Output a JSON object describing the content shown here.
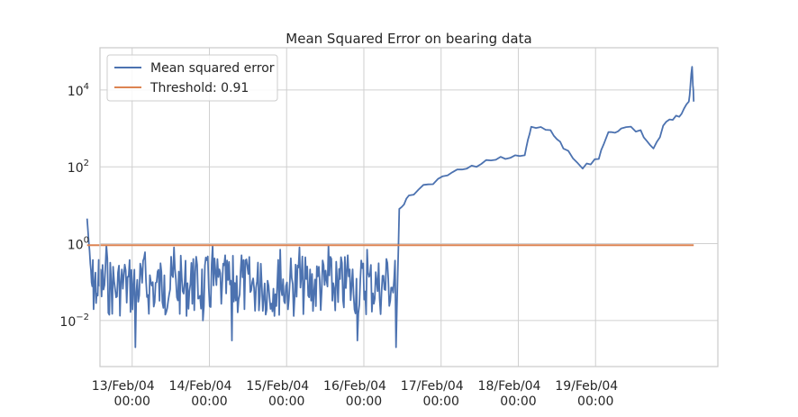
{
  "chart_data": {
    "type": "line",
    "title": "Mean Squared Error on bearing data",
    "xlabel": "",
    "ylabel": "",
    "y_scale": "log",
    "ylim_exponents": [
      -3.2,
      5.1
    ],
    "y_ticks": [
      {
        "exp": -2,
        "base": "10",
        "sup": "−2"
      },
      {
        "exp": 0,
        "base": "10",
        "sup": "0"
      },
      {
        "exp": 2,
        "base": "10",
        "sup": "2"
      },
      {
        "exp": 4,
        "base": "10",
        "sup": "4"
      }
    ],
    "xlim": [
      "2004-02-12T14:00",
      "2004-02-20T14:00"
    ],
    "x_ticks": [
      {
        "date": "2004-02-13T00:00",
        "line1": "13/Feb/04",
        "line2": "00:00"
      },
      {
        "date": "2004-02-14T00:00",
        "line1": "14/Feb/04",
        "line2": "00:00"
      },
      {
        "date": "2004-02-15T00:00",
        "line1": "15/Feb/04",
        "line2": "00:00"
      },
      {
        "date": "2004-02-16T00:00",
        "line1": "16/Feb/04",
        "line2": "00:00"
      },
      {
        "date": "2004-02-17T00:00",
        "line1": "17/Feb/04",
        "line2": "00:00"
      },
      {
        "date": "2004-02-18T00:00",
        "line1": "18/Feb/04",
        "line2": "00:00"
      },
      {
        "date": "2004-02-19T00:00",
        "line1": "19/Feb/04",
        "line2": "00:00"
      }
    ],
    "grid": true,
    "legend_position": "top-left",
    "colors": {
      "mse": "#4c72b0",
      "threshold": "#dd8452",
      "grid": "#d0d0d0",
      "axes": "#cccccc"
    },
    "series": [
      {
        "name": "Mean squared error",
        "note": "noisy below threshold until 16/Feb ~10:00, then rising trend",
        "x": [
          "2004-02-12T10:00",
          "2004-02-12T11:00",
          "2004-02-12T13:00",
          "2004-02-12T16:00",
          "2004-02-12T19:00",
          "2004-02-12T22:00",
          "2004-02-13T01:00",
          "2004-02-13T04:00",
          "2004-02-13T07:00",
          "2004-02-13T10:00",
          "2004-02-13T13:00",
          "2004-02-13T16:00",
          "2004-02-13T19:00",
          "2004-02-13T22:00",
          "2004-02-14T01:00",
          "2004-02-14T04:00",
          "2004-02-14T07:00",
          "2004-02-14T10:00",
          "2004-02-14T13:00",
          "2004-02-14T16:00",
          "2004-02-14T19:00",
          "2004-02-14T22:00",
          "2004-02-15T01:00",
          "2004-02-15T04:00",
          "2004-02-15T07:00",
          "2004-02-15T10:00",
          "2004-02-15T13:00",
          "2004-02-15T16:00",
          "2004-02-15T19:00",
          "2004-02-15T22:00",
          "2004-02-16T01:00",
          "2004-02-16T04:00",
          "2004-02-16T07:00",
          "2004-02-16T10:00",
          "2004-02-16T11:00",
          "2004-02-16T14:00",
          "2004-02-16T20:00",
          "2004-02-17T02:00",
          "2004-02-17T08:00",
          "2004-02-17T14:00",
          "2004-02-17T20:00",
          "2004-02-18T02:00",
          "2004-02-18T04:00",
          "2004-02-18T10:00",
          "2004-02-18T14:00",
          "2004-02-18T20:00",
          "2004-02-19T01:00",
          "2004-02-19T04:00",
          "2004-02-19T08:00",
          "2004-02-19T14:00",
          "2004-02-19T18:00",
          "2004-02-19T22:00",
          "2004-02-20T02:00",
          "2004-02-20T05:00",
          "2004-02-20T06:00",
          "2004-02-20T06:30"
        ],
        "y": [
          4.5,
          0.3,
          0.05,
          0.9,
          0.04,
          0.2,
          0.002,
          0.6,
          0.03,
          0.15,
          0.8,
          0.05,
          0.4,
          0.01,
          0.9,
          0.1,
          0.003,
          0.5,
          0.06,
          0.3,
          0.02,
          0.7,
          0.1,
          0.8,
          0.04,
          0.25,
          0.9,
          0.03,
          0.5,
          0.003,
          0.7,
          0.1,
          0.4,
          0.002,
          8,
          18,
          35,
          60,
          90,
          150,
          160,
          200,
          1100,
          900,
          300,
          90,
          160,
          800,
          1000,
          900,
          300,
          1500,
          2000,
          5000,
          40000,
          5000
        ]
      },
      {
        "name": "Threshold: 0.91",
        "x": [
          "2004-02-12T10:00",
          "2004-02-20T06:30"
        ],
        "y": [
          0.91,
          0.91
        ]
      }
    ]
  }
}
